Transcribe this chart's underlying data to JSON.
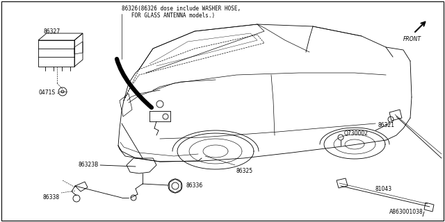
{
  "bg_color": "#ffffff",
  "line_color": "#000000",
  "diagram_id": "A863001038",
  "note_text_line1": "86326(86326 dose include WASHER HOSE,",
  "note_text_line2": "   FOR GLASS ANTENNA models.)",
  "lw": 0.6,
  "fig_w": 6.4,
  "fig_h": 3.2
}
